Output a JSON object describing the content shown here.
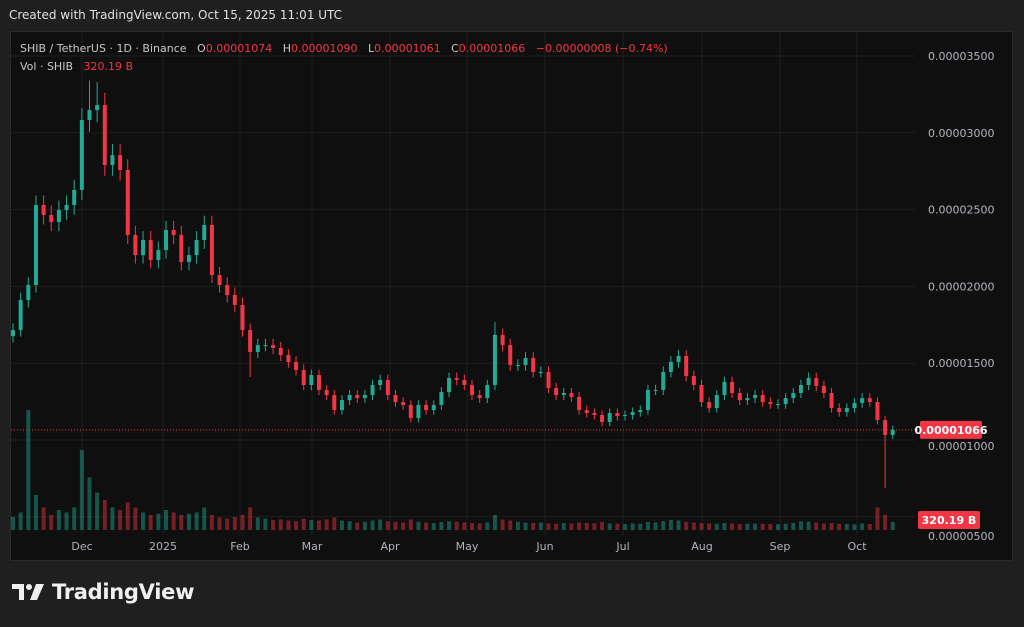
{
  "header": {
    "created_text": "Created with TradingView.com, Oct 15, 2025 11:01 UTC"
  },
  "legend": {
    "symbol": "SHIB / TetherUS · 1D · Binance",
    "o_label": "O",
    "o_value": "0.00001074",
    "h_label": "H",
    "h_value": "0.00001090",
    "l_label": "L",
    "l_value": "0.00001061",
    "c_label": "C",
    "c_value": "0.00001066",
    "change": "−0.00000008 (−0.74%)",
    "vol_label": "Vol · SHIB",
    "vol_value": "320.19 B"
  },
  "footer": {
    "brand": "TradingView"
  },
  "colors": {
    "up": "#22ab94",
    "down": "#f23645",
    "grid": "#1f1f1f",
    "axis_text": "#b2b5be"
  },
  "chart_data": {
    "type": "candlestick",
    "title": "SHIB / TetherUS · 1D · Binance",
    "price_unit": "1e-8 USDT",
    "interval_note": "resampled approx. every 3 days",
    "ylim": [
      0,
      3700
    ],
    "y_ticks": [
      {
        "value": 3500,
        "label": "0.00003500"
      },
      {
        "value": 3000,
        "label": "0.00003000"
      },
      {
        "value": 2500,
        "label": "0.00002500"
      },
      {
        "value": 2000,
        "label": "0.00002000"
      },
      {
        "value": 1500,
        "label": "0.00001500"
      },
      {
        "value": 1000,
        "label": "0.00001000"
      },
      {
        "value": 500,
        "label": "0.00000500"
      }
    ],
    "x_ticks": [
      "Dec",
      "2025",
      "Feb",
      "Mar",
      "Apr",
      "May",
      "Jun",
      "Jul",
      "Aug",
      "Sep",
      "Oct"
    ],
    "last_price": {
      "value": 1066,
      "label": "0.00001066"
    },
    "last_volume": {
      "label": "320.19 B"
    },
    "closes": [
      1716,
      1911,
      2009,
      2530,
      2465,
      2419,
      2497,
      2530,
      2628,
      3083,
      3148,
      3181,
      2790,
      2855,
      2758,
      2335,
      2204,
      2302,
      2172,
      2237,
      2367,
      2335,
      2159,
      2204,
      2302,
      2400,
      2074,
      2009,
      1944,
      1879,
      1716,
      1573,
      1618,
      1618,
      1599,
      1553,
      1508,
      1456,
      1358,
      1423,
      1326,
      1293,
      1195,
      1260,
      1293,
      1273,
      1293,
      1358,
      1391,
      1293,
      1247,
      1228,
      1143,
      1228,
      1195,
      1228,
      1312,
      1404,
      1391,
      1358,
      1293,
      1273,
      1358,
      1684,
      1618,
      1488,
      1488,
      1534,
      1443,
      1443,
      1339,
      1293,
      1306,
      1280,
      1195,
      1176,
      1163,
      1117,
      1176,
      1156,
      1163,
      1182,
      1195,
      1326,
      1326,
      1443,
      1508,
      1547,
      1417,
      1358,
      1247,
      1208,
      1293,
      1378,
      1306,
      1260,
      1273,
      1293,
      1247,
      1234,
      1234,
      1273,
      1306,
      1358,
      1404,
      1352,
      1306,
      1208,
      1182,
      1208,
      1241,
      1273,
      1247,
      1130,
      1033,
      1066
    ],
    "notable_wicks": [
      {
        "index": 10,
        "high": 3340
      },
      {
        "index": 11,
        "high": 3330
      },
      {
        "index": 31,
        "low": 1410
      },
      {
        "index": 63,
        "high": 1768
      },
      {
        "index": 114,
        "low": 687
      }
    ],
    "volumes_b": [
      520,
      700,
      4800,
      1400,
      900,
      600,
      800,
      700,
      900,
      3200,
      2100,
      1500,
      1200,
      900,
      800,
      1100,
      900,
      700,
      600,
      650,
      800,
      700,
      600,
      650,
      700,
      900,
      600,
      500,
      450,
      520,
      600,
      900,
      500,
      450,
      400,
      420,
      380,
      350,
      450,
      400,
      380,
      420,
      500,
      380,
      350,
      300,
      330,
      380,
      420,
      350,
      330,
      300,
      420,
      330,
      300,
      280,
      320,
      350,
      330,
      300,
      280,
      260,
      300,
      600,
      420,
      380,
      330,
      300,
      280,
      300,
      260,
      250,
      280,
      260,
      300,
      280,
      270,
      320,
      260,
      250,
      240,
      260,
      250,
      320,
      300,
      350,
      400,
      380,
      330,
      300,
      280,
      260,
      250,
      280,
      260,
      240,
      250,
      260,
      250,
      240,
      230,
      250,
      280,
      350,
      330,
      300,
      260,
      280,
      250,
      240,
      230,
      260,
      240,
      900,
      600,
      320
    ]
  }
}
